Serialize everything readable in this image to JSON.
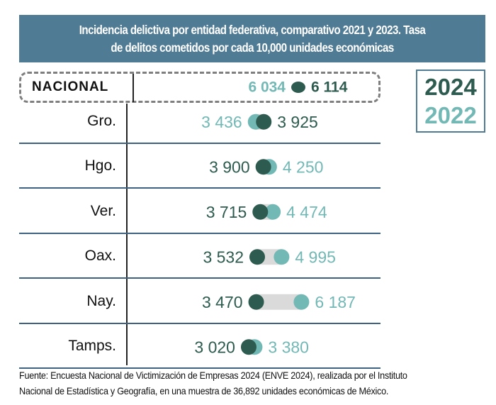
{
  "title": {
    "line1": "Incidencia delictiva por entidad federativa, comparativo 2021 y 2023. Tasa",
    "line2": "de delitos cometidos por cada 10,000 unidades económicas"
  },
  "legend": {
    "series_a": "2024",
    "series_b": "2022",
    "colors": {
      "2024": "#2e5b4f",
      "2022": "#72b8b5",
      "connector": "#dadada"
    }
  },
  "source": {
    "line1": "Fuente: Encuesta Nacional de Victimización de Empresas 2024 (ENVE 2024), realizada por el Instituto",
    "line2": "Nacional de Estadística y Geografía, en una muestra de 36,892 unidades económicas de México."
  },
  "chart_data": {
    "type": "dumbbell",
    "title": "Incidencia delictiva por entidad federativa, comparativo 2021 y 2023. Tasa de delitos cometidos por cada 10,000 unidades económicas",
    "series": [
      {
        "name": "2024",
        "color": "#2e5b4f"
      },
      {
        "name": "2022",
        "color": "#72b8b5"
      }
    ],
    "national": {
      "label": "NACIONAL",
      "v2022": 6034,
      "v2024": 6114,
      "text2022": "6 034",
      "text2024": "6 114"
    },
    "rows": [
      {
        "label": "Gro.",
        "v2024": 3925,
        "v2022": 3436,
        "text2024": "3 925",
        "text2022": "3 436"
      },
      {
        "label": "Hgo.",
        "v2024": 3900,
        "v2022": 4250,
        "text2024": "3 900",
        "text2022": "4 250"
      },
      {
        "label": "Ver.",
        "v2024": 3715,
        "v2022": 4474,
        "text2024": "3 715",
        "text2022": "4 474"
      },
      {
        "label": "Oax.",
        "v2024": 3532,
        "v2022": 4995,
        "text2024": "3 532",
        "text2022": "4 995"
      },
      {
        "label": "Nay.",
        "v2024": 3470,
        "v2022": 6187,
        "text2024": "3 470",
        "text2022": "6 187"
      },
      {
        "label": "Tamps.",
        "v2024": 3020,
        "v2022": 3380,
        "text2024": "3 020",
        "text2022": "3 380"
      }
    ],
    "legend_position": "top-right",
    "grid": false
  }
}
